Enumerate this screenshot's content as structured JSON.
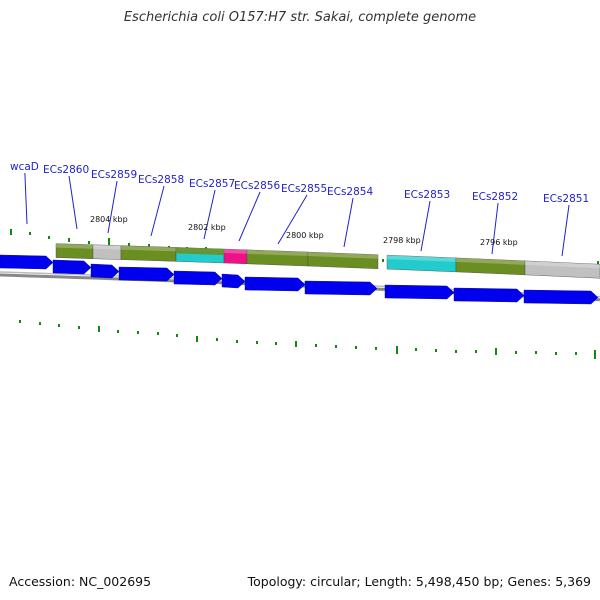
{
  "title": "Escherichia coli O157:H7 str. Sakai, complete genome",
  "footer": {
    "accession": "Accession: NC_002695",
    "summary": "Topology: circular; Length: 5,498,450 bp; Genes: 5,369"
  },
  "colors": {
    "cds": "#0000ee",
    "olive": "#6b8e23",
    "grey": "#c0c0c0",
    "cyan": "#22cccc",
    "magenta": "#ee1188",
    "gc_skew": "#118811",
    "backbone": "#888888",
    "label": "#2222cc"
  },
  "gene_labels": [
    "wcaD",
    "ECs2860",
    "ECs2859",
    "ECs2858",
    "ECs2857",
    "ECs2856",
    "ECs2855",
    "ECs2854",
    "ECs2853",
    "ECs2852",
    "ECs2851"
  ],
  "kbp_labels": [
    "2804 kbp",
    "2802 kbp",
    "2800 kbp",
    "2798 kbp",
    "2796 kbp"
  ]
}
